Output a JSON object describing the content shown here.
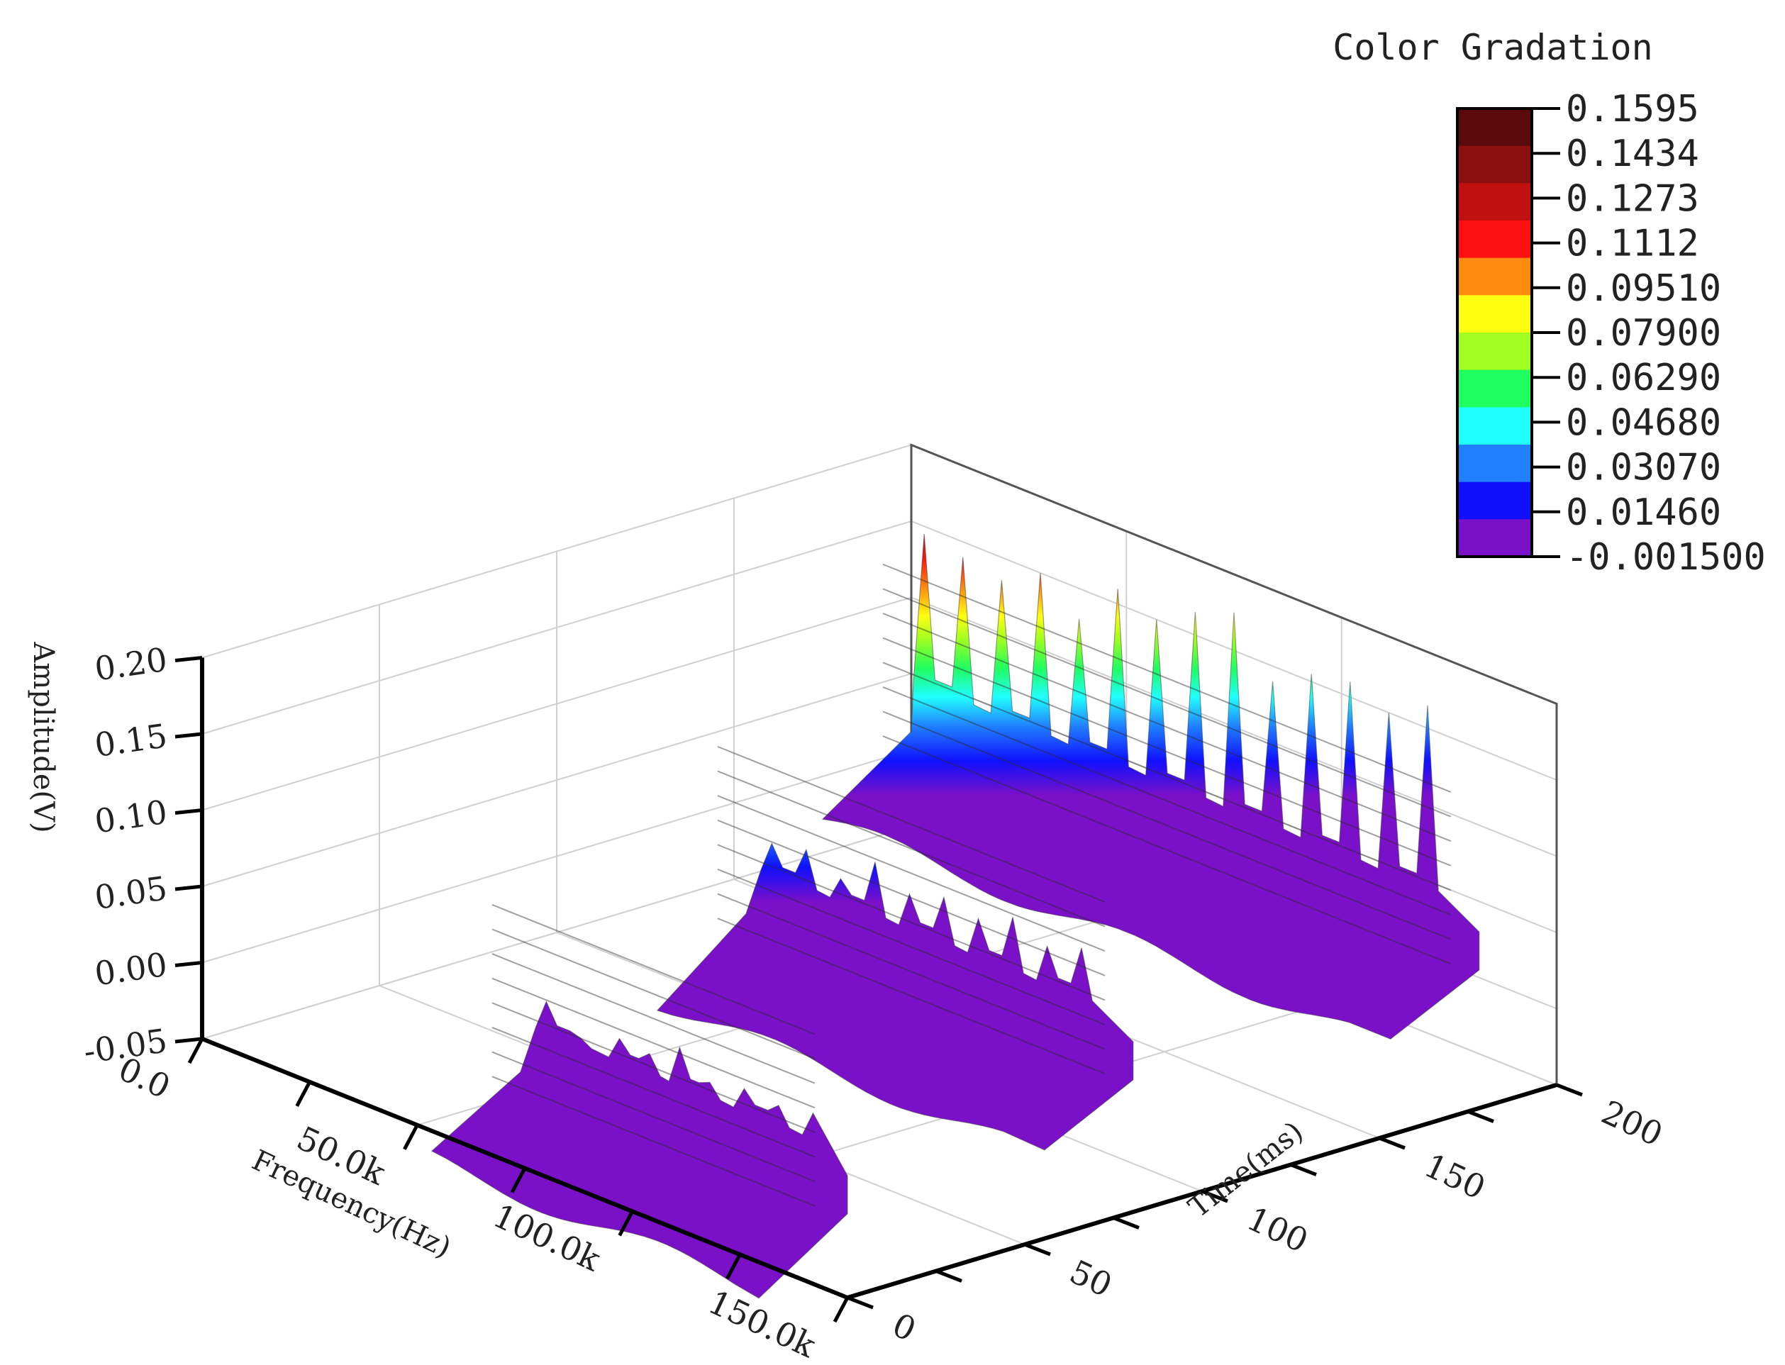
{
  "chart_data": {
    "type": "surface3d",
    "title": "",
    "axes": {
      "x": {
        "label": "Frequency(Hz)",
        "range": [
          0,
          150000
        ],
        "ticks": [
          {
            "value": 0,
            "label": "0.0"
          },
          {
            "value": 50000,
            "label": "50.0k"
          },
          {
            "value": 100000,
            "label": "100.0k"
          },
          {
            "value": 150000,
            "label": "150.0k"
          }
        ]
      },
      "y": {
        "label": "Time(ms)",
        "range": [
          0,
          200
        ],
        "ticks": [
          {
            "value": 0,
            "label": "0"
          },
          {
            "value": 50,
            "label": "50"
          },
          {
            "value": 100,
            "label": "100"
          },
          {
            "value": 150,
            "label": "150"
          },
          {
            "value": 200,
            "label": "200"
          }
        ]
      },
      "z": {
        "label": "Amplitude(V)",
        "range": [
          -0.05,
          0.2
        ],
        "ticks": [
          {
            "value": -0.05,
            "label": "-0.05"
          },
          {
            "value": 0.0,
            "label": "0.00"
          },
          {
            "value": 0.05,
            "label": "0.05"
          },
          {
            "value": 0.1,
            "label": "0.10"
          },
          {
            "value": 0.15,
            "label": "0.15"
          },
          {
            "value": 0.2,
            "label": "0.20"
          }
        ]
      }
    },
    "colorbar": {
      "title": "Color Gradation",
      "levels": [
        "0.1595",
        "0.1434",
        "0.1273",
        "0.1112",
        "0.09510",
        "0.07900",
        "0.06290",
        "0.04680",
        "0.03070",
        "0.01460",
        "-0.001500"
      ],
      "colors": [
        "#5a0a0a",
        "#8b0f0f",
        "#c01010",
        "#ff1010",
        "#ff8a10",
        "#ffff10",
        "#a0ff20",
        "#20ff60",
        "#20ffff",
        "#2080ff",
        "#1010ff",
        "#7a10c8"
      ]
    },
    "surface": {
      "frequency_hz": [
        0,
        5000,
        10000,
        15000,
        20000,
        25000,
        30000,
        35000,
        40000,
        45000,
        50000,
        55000,
        60000,
        65000,
        70000,
        75000,
        80000,
        85000,
        90000,
        95000,
        100000,
        105000,
        110000,
        115000,
        120000,
        125000,
        130000,
        135000,
        140000,
        145000,
        150000
      ],
      "time_ms": [
        0,
        100,
        200
      ],
      "bands": [
        {
          "time_ms": 0,
          "peaks": [
            {
              "f": 80000,
              "z": 0.065
            },
            {
              "f": 88000,
              "z": 0.05
            },
            {
              "f": 97000,
              "z": 0.06
            },
            {
              "f": 104000,
              "z": 0.058
            },
            {
              "f": 111000,
              "z": 0.07
            },
            {
              "f": 118000,
              "z": 0.055
            },
            {
              "f": 126000,
              "z": 0.06
            },
            {
              "f": 134000,
              "z": 0.058
            },
            {
              "f": 142000,
              "z": 0.062
            }
          ]
        },
        {
          "time_ms": 100,
          "peaks": [
            {
              "f": 50000,
              "z": 0.065
            },
            {
              "f": 58000,
              "z": 0.07
            },
            {
              "f": 66000,
              "z": 0.06
            },
            {
              "f": 74000,
              "z": 0.08
            },
            {
              "f": 82000,
              "z": 0.068
            },
            {
              "f": 90000,
              "z": 0.075
            },
            {
              "f": 98000,
              "z": 0.07
            },
            {
              "f": 106000,
              "z": 0.08
            },
            {
              "f": 114000,
              "z": 0.07
            },
            {
              "f": 122000,
              "z": 0.078
            }
          ]
        },
        {
          "time_ms": 200,
          "peaks": [
            {
              "f": 3000,
              "z": 0.145
            },
            {
              "f": 12000,
              "z": 0.14
            },
            {
              "f": 21000,
              "z": 0.135
            },
            {
              "f": 30000,
              "z": 0.15
            },
            {
              "f": 39000,
              "z": 0.13
            },
            {
              "f": 48000,
              "z": 0.16
            },
            {
              "f": 57000,
              "z": 0.15
            },
            {
              "f": 66000,
              "z": 0.165
            },
            {
              "f": 75000,
              "z": 0.175
            },
            {
              "f": 84000,
              "z": 0.14
            },
            {
              "f": 93000,
              "z": 0.155
            },
            {
              "f": 102000,
              "z": 0.16
            },
            {
              "f": 111000,
              "z": 0.15
            },
            {
              "f": 120000,
              "z": 0.165
            }
          ]
        }
      ]
    }
  }
}
